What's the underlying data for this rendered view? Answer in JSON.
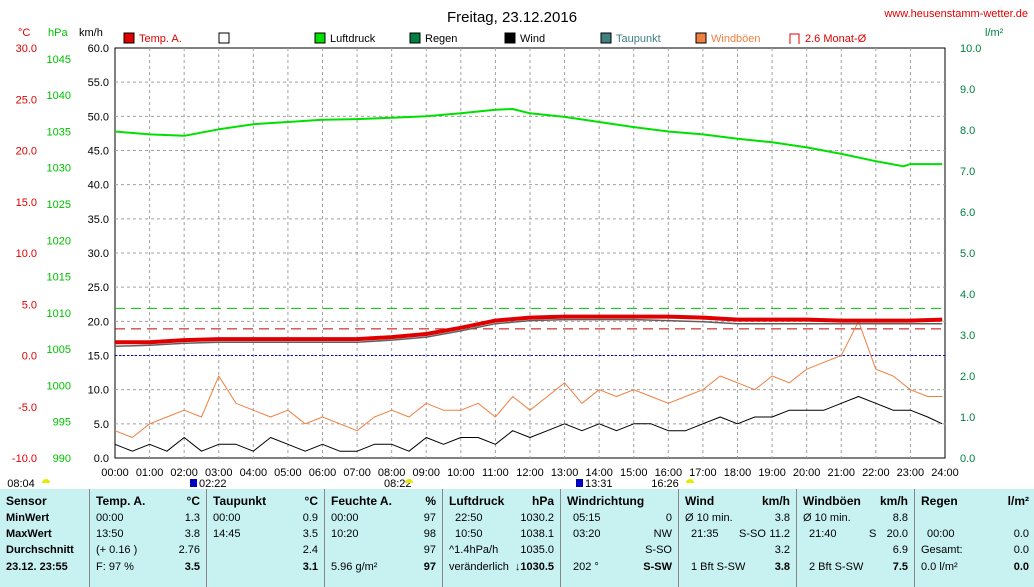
{
  "chart_data": {
    "type": "line",
    "title": "Freitag, 23.12.2016",
    "website": "www.heusenstamm-wetter.de",
    "x_ticks": [
      "00:00",
      "01:00",
      "02:00",
      "03:00",
      "04:00",
      "05:00",
      "06:00",
      "07:00",
      "08:00",
      "09:00",
      "10:00",
      "11:00",
      "12:00",
      "13:00",
      "14:00",
      "15:00",
      "16:00",
      "17:00",
      "18:00",
      "19:00",
      "20:00",
      "21:00",
      "22:00",
      "23:00",
      "24:00"
    ],
    "axes": {
      "temp_c": {
        "unit": "°C",
        "ticks": [
          "30.0",
          "25.0",
          "20.0",
          "15.0",
          "10.0",
          "5.0",
          "0.0",
          "-5.0",
          "-10.0"
        ],
        "range": [
          -10,
          30
        ]
      },
      "pressure_hpa": {
        "unit": "hPa",
        "ticks": [
          "1045",
          "1040",
          "1035",
          "1030",
          "1025",
          "1020",
          "1015",
          "1010",
          "1005",
          "1000",
          "995",
          "990"
        ],
        "range": [
          990,
          1046.5
        ]
      },
      "speed_kmh": {
        "unit": "km/h",
        "ticks": [
          "60.0",
          "55.0",
          "50.0",
          "45.0",
          "40.0",
          "35.0",
          "30.0",
          "25.0",
          "20.0",
          "15.0",
          "10.0",
          "5.0",
          "0.0"
        ],
        "range": [
          0,
          60
        ]
      },
      "rain_lm2": {
        "unit": "l/m²",
        "ticks": [
          "10.0",
          "9.0",
          "8.0",
          "7.0",
          "6.0",
          "5.0",
          "4.0",
          "3.0",
          "2.0",
          "1.0",
          "0.0"
        ],
        "range": [
          0,
          10
        ]
      }
    },
    "legend": [
      {
        "name": "Temp. A.",
        "color": "#e00000",
        "style": "filled"
      },
      {
        "name": "",
        "color": "#ffffff",
        "style": "outline"
      },
      {
        "name": "Luftdruck",
        "color": "#00e000",
        "style": "filled"
      },
      {
        "name": "Regen",
        "color": "#008040",
        "style": "filled"
      },
      {
        "name": "Wind",
        "color": "#000000",
        "style": "filled"
      },
      {
        "name": "Taupunkt",
        "color": "#408080",
        "style": "filled"
      },
      {
        "name": "Windböen",
        "color": "#f08040",
        "style": "filled"
      },
      {
        "name": "2.6 Monat-Ø",
        "color": "#e00000",
        "style": "bracket"
      }
    ],
    "series": [
      {
        "name": "Temp. A.",
        "axis": "temp_c",
        "color": "#e00000",
        "x": [
          0,
          1,
          2,
          3,
          4,
          5,
          6,
          7,
          8,
          9,
          10,
          11,
          12,
          13,
          14,
          15,
          16,
          17,
          18,
          19,
          20,
          21,
          22,
          23,
          23.92
        ],
        "y": [
          1.3,
          1.3,
          1.5,
          1.6,
          1.6,
          1.6,
          1.6,
          1.6,
          1.8,
          2.1,
          2.7,
          3.4,
          3.7,
          3.8,
          3.8,
          3.8,
          3.8,
          3.7,
          3.5,
          3.5,
          3.5,
          3.4,
          3.4,
          3.4,
          3.5
        ]
      },
      {
        "name": "Taupunkt",
        "axis": "temp_c",
        "color": "#408080",
        "x": [
          0,
          1,
          2,
          3,
          4,
          5,
          6,
          7,
          8,
          9,
          10,
          11,
          12,
          13,
          14,
          15,
          16,
          17,
          18,
          19,
          20,
          21,
          22,
          23,
          23.92
        ],
        "y": [
          0.9,
          1.0,
          1.2,
          1.3,
          1.3,
          1.3,
          1.3,
          1.3,
          1.5,
          1.8,
          2.4,
          3.1,
          3.4,
          3.5,
          3.5,
          3.5,
          3.4,
          3.3,
          3.1,
          3.1,
          3.1,
          3.1,
          3.1,
          3.1,
          3.1
        ]
      },
      {
        "name": "Luftdruck",
        "axis": "pressure_hpa",
        "color": "#00e000",
        "x": [
          0,
          1,
          2,
          3,
          4,
          5,
          6,
          7,
          8,
          9,
          10,
          11,
          11.5,
          12,
          13,
          14,
          15,
          16,
          17,
          18,
          19,
          20,
          21,
          22,
          22.8,
          23,
          23.92
        ],
        "y": [
          1035.0,
          1034.6,
          1034.4,
          1035.3,
          1036.0,
          1036.3,
          1036.6,
          1036.7,
          1036.9,
          1037.1,
          1037.5,
          1038.0,
          1038.1,
          1037.5,
          1037.0,
          1036.3,
          1035.6,
          1035.0,
          1034.6,
          1034.0,
          1033.5,
          1032.8,
          1031.9,
          1030.9,
          1030.2,
          1030.5,
          1030.5
        ]
      },
      {
        "name": "Wind",
        "axis": "speed_kmh",
        "color": "#000000",
        "x": [
          0,
          0.5,
          1,
          1.5,
          2,
          2.5,
          3,
          3.5,
          4,
          4.5,
          5,
          5.5,
          6,
          6.5,
          7,
          7.5,
          8,
          8.5,
          9,
          9.5,
          10,
          10.5,
          11,
          11.5,
          12,
          12.5,
          13,
          13.5,
          14,
          14.5,
          15,
          15.5,
          16,
          16.5,
          17,
          17.5,
          18,
          18.5,
          19,
          19.5,
          20,
          20.5,
          21,
          21.5,
          22,
          22.5,
          23,
          23.5,
          23.92
        ],
        "y": [
          2,
          1,
          2,
          1,
          3,
          1,
          2,
          2,
          1,
          3,
          2,
          1,
          2,
          1,
          1,
          2,
          2,
          1,
          3,
          2,
          3,
          3,
          2,
          4,
          3,
          4,
          5,
          4,
          5,
          4,
          5,
          5,
          4,
          4,
          5,
          6,
          5,
          6,
          6,
          7,
          7,
          7,
          8,
          9,
          8,
          7,
          7,
          6,
          5
        ]
      },
      {
        "name": "Windböen",
        "axis": "speed_kmh",
        "color": "#f08040",
        "x": [
          0,
          0.5,
          1,
          1.5,
          2,
          2.5,
          3,
          3.5,
          4,
          4.5,
          5,
          5.5,
          6,
          6.5,
          7,
          7.5,
          8,
          8.5,
          9,
          9.5,
          10,
          10.5,
          11,
          11.5,
          12,
          12.5,
          13,
          13.5,
          14,
          14.5,
          15,
          15.5,
          16,
          16.5,
          17,
          17.5,
          18,
          18.5,
          19,
          19.5,
          20,
          20.5,
          21,
          21.5,
          22,
          22.5,
          23,
          23.5,
          23.92
        ],
        "y": [
          4,
          3,
          5,
          6,
          7,
          6,
          12,
          8,
          7,
          6,
          7,
          5,
          6,
          5,
          4,
          6,
          7,
          6,
          8,
          7,
          7,
          8,
          6,
          9,
          7,
          9,
          11,
          8,
          10,
          9,
          10,
          9,
          8,
          9,
          10,
          12,
          11,
          10,
          12,
          11,
          13,
          14,
          15,
          20,
          13,
          12,
          10,
          9,
          9
        ]
      }
    ],
    "reference_lines": [
      {
        "axis": "temp_c",
        "value": 4.6,
        "color": "#00c000",
        "style": "dashed"
      },
      {
        "axis": "temp_c",
        "value": 2.6,
        "color": "#c00000",
        "style": "dashed"
      },
      {
        "axis": "temp_c",
        "value": 0.0,
        "color": "#0000e0",
        "style": "dotted"
      }
    ],
    "markers": [
      {
        "label": "08:04",
        "color": "#e8e800"
      },
      {
        "label": "02:22",
        "color": "#0000c0"
      },
      {
        "label": "08:22",
        "color": "#e8e800"
      },
      {
        "label": "13:31",
        "color": "#0000c0"
      },
      {
        "label": "16:26",
        "color": "#e8e800"
      }
    ]
  },
  "table": {
    "sensor": {
      "title": "Sensor",
      "min": "MinWert",
      "max": "MaxWert",
      "avg": "Durchschnitt",
      "date": "23.12. 23:55"
    },
    "temp": {
      "title": "Temp. A.",
      "unit": "°C",
      "min_t": "00:00",
      "min_v": "1.3",
      "max_t": "13:50",
      "max_v": "3.8",
      "avg_t": "(+ 0.16 )",
      "avg_v": "2.76",
      "cur_t": "F: 97 %",
      "cur_v": "3.5"
    },
    "dew": {
      "title": "Taupunkt",
      "unit": "°C",
      "min_t": "00:00",
      "min_v": "0.9",
      "max_t": "14:45",
      "max_v": "3.5",
      "avg_v": "2.4",
      "cur_v": "3.1"
    },
    "hum": {
      "title": "Feuchte A.",
      "unit": "%",
      "min_t": "00:00",
      "min_v": "97",
      "max_t": "10:20",
      "max_v": "98",
      "avg_v": "97",
      "cur_t": "5.96 g/m²",
      "cur_v": "97"
    },
    "press": {
      "title": "Luftdruck",
      "unit": "hPa",
      "min_t": "22:50",
      "min_v": "1030.2",
      "max_t": "10:50",
      "max_v": "1038.1",
      "avg_t": "^1.4hPa/h",
      "avg_v": "1035.0",
      "cur_t": "veränderlich",
      "cur_v": "↓1030.5"
    },
    "dir": {
      "title": "Windrichtung",
      "min_t": "05:15",
      "min_v": "0",
      "max_t": "03:20",
      "max_v": "NW",
      "avg_v": "S-SO",
      "cur_t": "202 °",
      "cur_v": "S-SW"
    },
    "wind": {
      "title": "Wind",
      "unit": "km/h",
      "min_t": "Ø 10 min.",
      "min_v": "3.8",
      "max_t": "21:35",
      "max_m": "S-SO",
      "max_v": "11.2",
      "avg_v": "3.2",
      "cur_t": "1 Bft S-SW",
      "cur_v": "3.8"
    },
    "gust": {
      "title": "Windböen",
      "unit": "km/h",
      "min_t": "Ø 10 min.",
      "min_v": "8.8",
      "max_t": "21:40",
      "max_m": "S",
      "max_v": "20.0",
      "avg_v": "6.9",
      "cur_t": "2 Bft S-SW",
      "cur_v": "7.5"
    },
    "rain": {
      "title": "Regen",
      "unit": "l/m²",
      "max_t": "00:00",
      "max_v": "0.0",
      "avg_t": "Gesamt:",
      "avg_v": "0.0",
      "cur_t": "0.0 l/m²",
      "cur_v": "0.0"
    }
  }
}
